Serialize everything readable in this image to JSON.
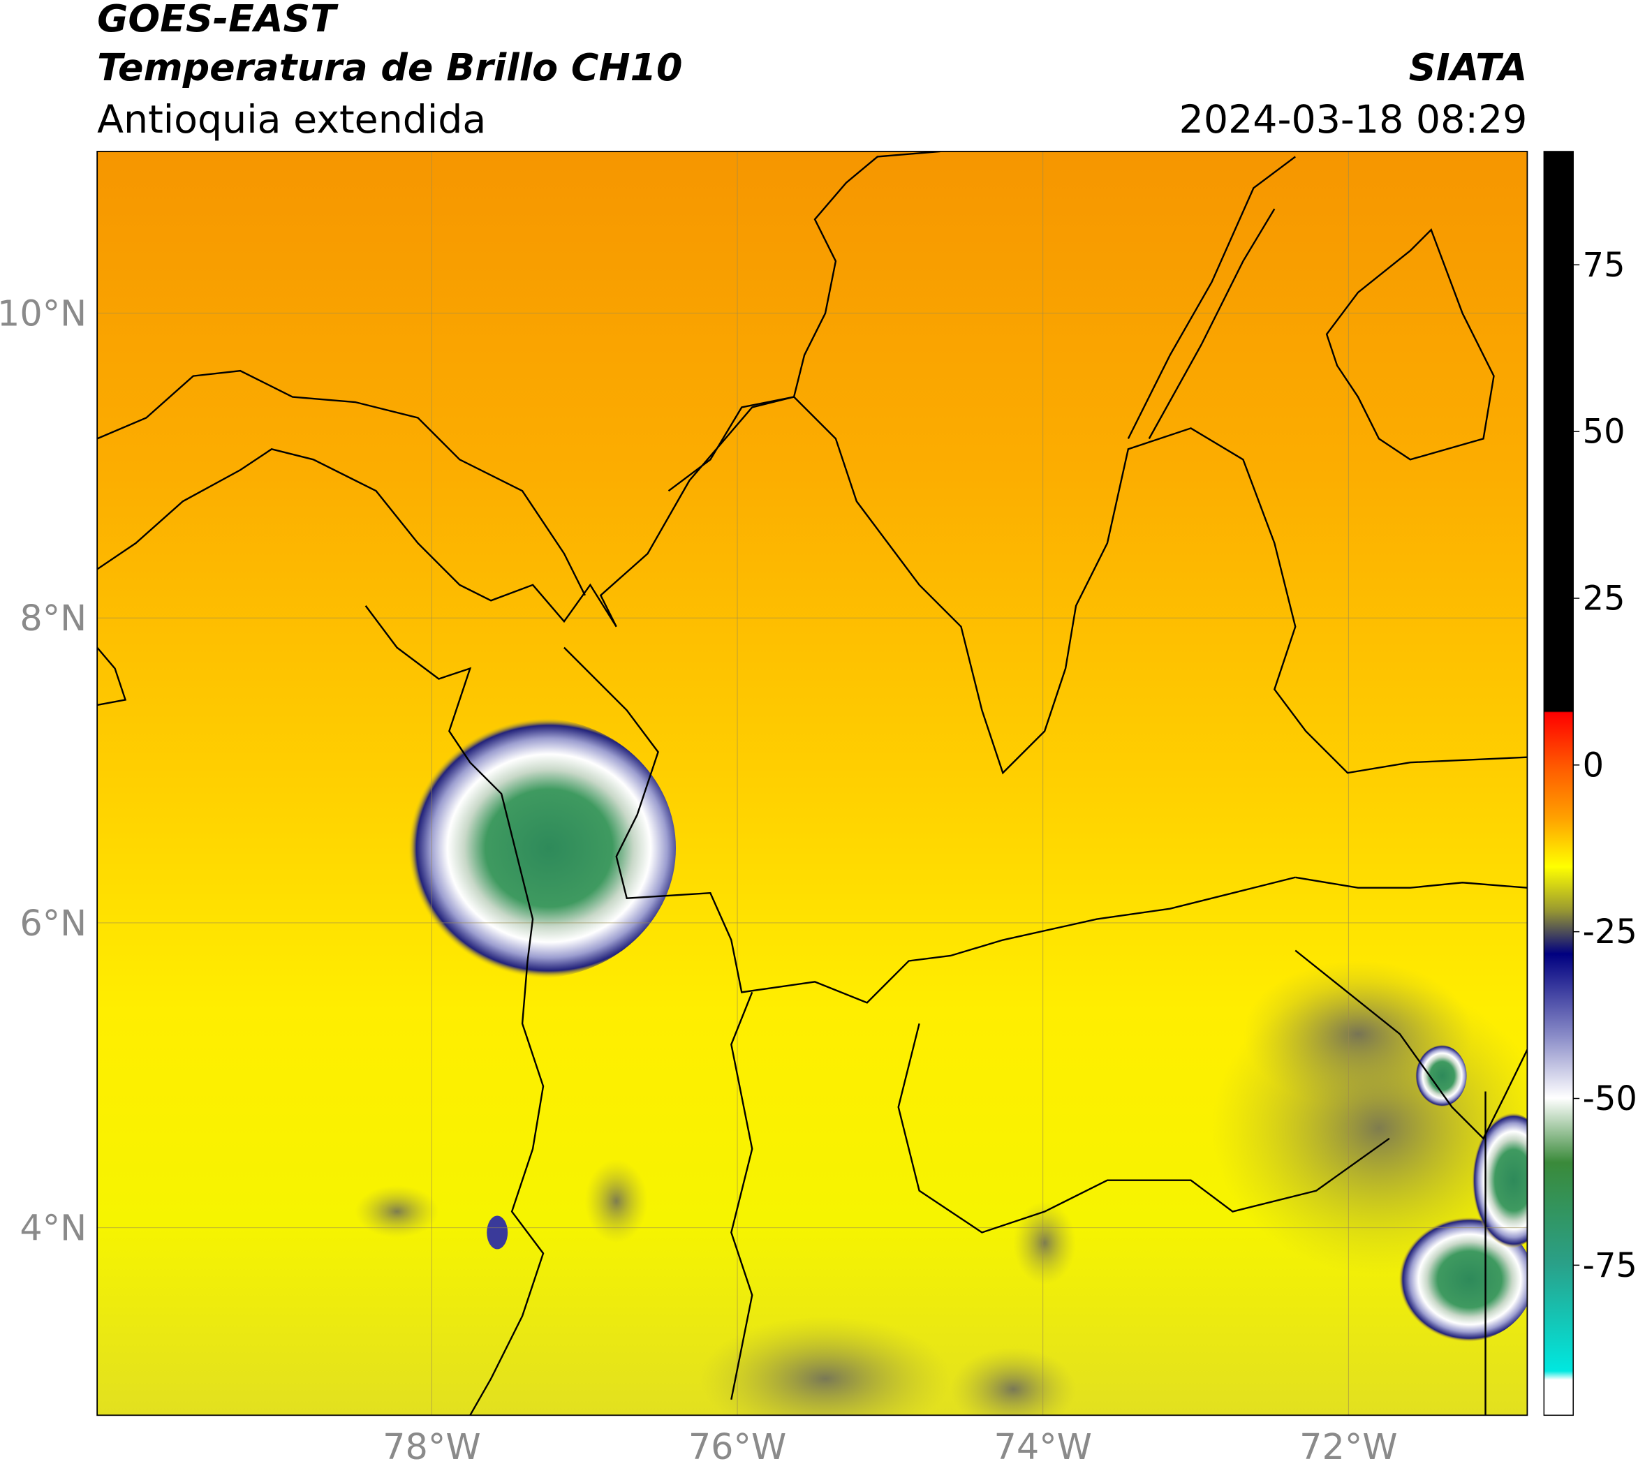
{
  "header": {
    "title": "GOES-EAST",
    "subtitle": "Temperatura de Brillo CH10",
    "region": "Antioquia extendida",
    "source": "SIATA",
    "datetime": "2024-03-18 08:29"
  },
  "map": {
    "xlim": [
      -80.19,
      -70.83
    ],
    "ylim": [
      2.77,
      11.06
    ],
    "xticks": [
      {
        "value": -78,
        "label": "78°W"
      },
      {
        "value": -76,
        "label": "76°W"
      },
      {
        "value": -74,
        "label": "74°W"
      },
      {
        "value": -72,
        "label": "72°W"
      }
    ],
    "yticks": [
      {
        "value": 10,
        "label": "10°N"
      },
      {
        "value": 8,
        "label": "8°N"
      },
      {
        "value": 6,
        "label": "6°N"
      },
      {
        "value": 4,
        "label": "4°N"
      }
    ],
    "grid": true
  },
  "colorbar": {
    "lim": [
      -97.5,
      92
    ],
    "ticks": [
      75,
      50,
      25,
      0,
      -25,
      -50,
      -75
    ]
  }
}
